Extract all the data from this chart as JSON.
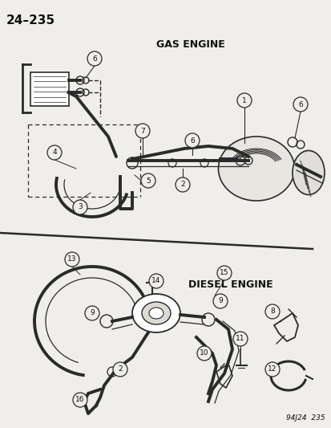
{
  "title_page": "24–235",
  "label_gas": "GAS ENGINE",
  "label_diesel": "DIESEL ENGINE",
  "label_bottom": "94J24  235",
  "bg_color": "#f0eeea",
  "line_color": "#2a2a2a",
  "text_color": "#111111"
}
